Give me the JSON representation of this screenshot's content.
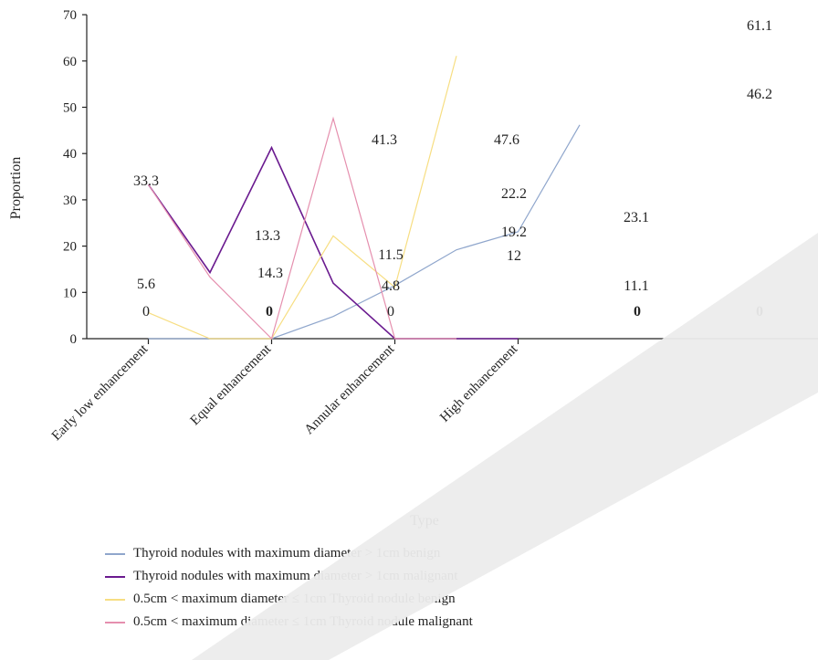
{
  "chart_data": {
    "type": "line",
    "xlabel": "Type",
    "ylabel": "Proportion",
    "ylim": [
      0,
      70
    ],
    "y_ticks": [
      "0",
      "10",
      "20",
      "30",
      "40",
      "50",
      "60",
      "70"
    ],
    "x_points": [
      "",
      "Early low enhancement",
      "",
      "Equal enhancement",
      "",
      "Annular enhancement",
      "",
      "High enhancement",
      ""
    ],
    "tick_labels": [
      "Early low enhancement",
      "Equal enhancement",
      "Annular enhancement",
      "High enhancement"
    ],
    "grid": false,
    "legend_position": "bottom",
    "series": [
      {
        "name": "Thyroid nodules with maximum diameter > 1cm benign",
        "color": "#8fa6cc",
        "values": [
          0,
          0,
          0,
          4.8,
          11.5,
          19.2,
          23.1,
          46.2
        ]
      },
      {
        "name": "Thyroid nodules with maximum diameter > 1cm malignant",
        "color": "#6a1a8f",
        "values": [
          33.3,
          14.3,
          41.3,
          12,
          0,
          0,
          0
        ]
      },
      {
        "name": "0.5cm < maximum diameter ≤ 1cm Thyroid nodule benign",
        "color": "#f7de82",
        "values": [
          5.6,
          0,
          0,
          22.2,
          11.1,
          61.1
        ]
      },
      {
        "name": "0.5cm < maximum diameter ≤ 1cm Thyroid nodule malignant",
        "color": "#e58fae",
        "values": [
          33.3,
          13.3,
          0,
          47.6,
          0,
          0
        ]
      }
    ],
    "data_labels": [
      "33.3",
      "13.3",
      "5.6",
      "0",
      "14.3",
      "0",
      "41.3",
      "11.5",
      "4.8",
      "0",
      "47.6",
      "22.2",
      "19.2",
      "12",
      "23.1",
      "11.1",
      "0",
      "61.1",
      "46.2",
      "0"
    ]
  }
}
